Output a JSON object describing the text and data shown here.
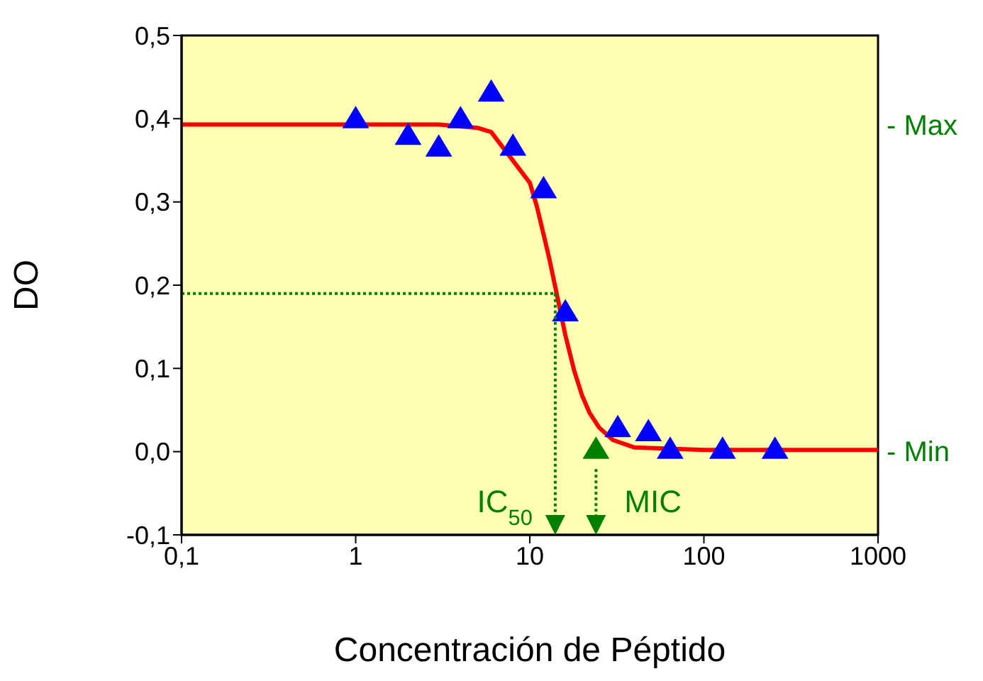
{
  "chart_data": {
    "type": "scatter",
    "xlabel": "Concentración de Péptido",
    "ylabel": "DO",
    "log": "x",
    "marker": "triangle",
    "xlim": [
      0.1,
      1000
    ],
    "xticks": [
      {
        "value": 0.1,
        "label": "0,1"
      },
      1,
      10,
      100,
      1000
    ],
    "ylim": [
      -0.1,
      0.5
    ],
    "yticks": [
      {
        "value": -0.1,
        "label": "-0,1"
      },
      {
        "value": 0,
        "label": "0,0"
      },
      {
        "value": 0.1,
        "label": "0,1"
      },
      {
        "value": 0.2,
        "label": "0,2"
      },
      {
        "value": 0.3,
        "label": "0,3"
      },
      {
        "value": 0.4,
        "label": "0,4"
      },
      {
        "value": 0.5,
        "label": "0,5"
      }
    ],
    "series": [
      {
        "type": "line",
        "color": "#ff0000",
        "marker": "none",
        "x": [
          0.1,
          0.5,
          1.5,
          3,
          5,
          6,
          10,
          11,
          13,
          14,
          16,
          18,
          20,
          22,
          25,
          30,
          40,
          100,
          1000
        ],
        "values": [
          0.393,
          0.393,
          0.393,
          0.393,
          0.389,
          0.384,
          0.323,
          0.294,
          0.23,
          0.198,
          0.14,
          0.097,
          0.067,
          0.047,
          0.029,
          0.014,
          0.005,
          0.002,
          0.002
        ]
      },
      {
        "color": "#0000ff",
        "x": [
          1,
          2,
          3,
          4,
          6,
          8,
          12,
          16,
          32,
          48,
          64,
          128,
          256
        ],
        "values": [
          0.4,
          0.38,
          0.366,
          0.4,
          0.432,
          0.367,
          0.316,
          0.168,
          0.029,
          0.024,
          0.003,
          0.003,
          0.003
        ]
      },
      {
        "color": "#008000",
        "x": [
          24
        ],
        "values": [
          0.003
        ]
      }
    ],
    "ref_lines": [
      {
        "axis": "y",
        "value": 0.19,
        "color": "#008000",
        "line_style": "dotted"
      }
    ],
    "annotations": [
      {
        "text": "IC$_{50}$",
        "x": 14,
        "y": 0.19
      },
      {
        "text": "MIC",
        "x": 24,
        "y": 0.003
      },
      "- Max",
      "- Min"
    ]
  }
}
